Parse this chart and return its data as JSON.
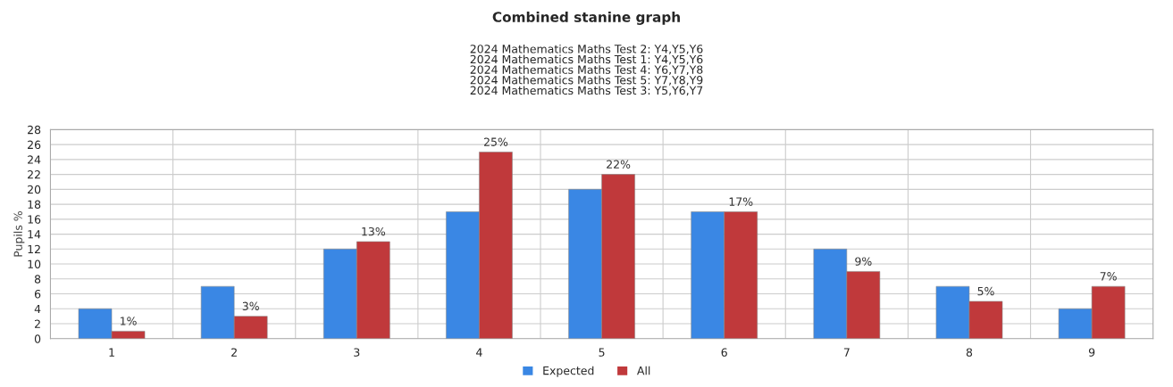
{
  "chart_data": {
    "type": "bar",
    "title": "Combined stanine graph",
    "subtitle": "2024 Mathematics Maths Test 2: Y4,Y5,Y6\n2024 Mathematics Maths Test 1: Y4,Y5,Y6\n2024 Mathematics Maths Test 4: Y6,Y7,Y8\n2024 Mathematics Maths Test 5: Y7,Y8,Y9\n2024 Mathematics Maths Test 3: Y5,Y6,Y7",
    "ylabel": "Pupils %",
    "categories": [
      "1",
      "2",
      "3",
      "4",
      "5",
      "6",
      "7",
      "8",
      "9"
    ],
    "series": [
      {
        "name": "Expected",
        "color": "#3a87e4",
        "values": [
          4,
          7,
          12,
          17,
          20,
          17,
          12,
          7,
          4
        ]
      },
      {
        "name": "All",
        "color": "#c0393b",
        "values": [
          1,
          3,
          13,
          25,
          22,
          17,
          9,
          5,
          7
        ],
        "value_labels": [
          "1%",
          "3%",
          "13%",
          "25%",
          "22%",
          "17%",
          "9%",
          "5%",
          "7%"
        ]
      }
    ],
    "ylim": [
      0,
      28
    ],
    "yticks": [
      0,
      2,
      4,
      6,
      8,
      10,
      12,
      14,
      16,
      18,
      20,
      22,
      24,
      26,
      28
    ],
    "grid": true,
    "legend": "bottom"
  }
}
